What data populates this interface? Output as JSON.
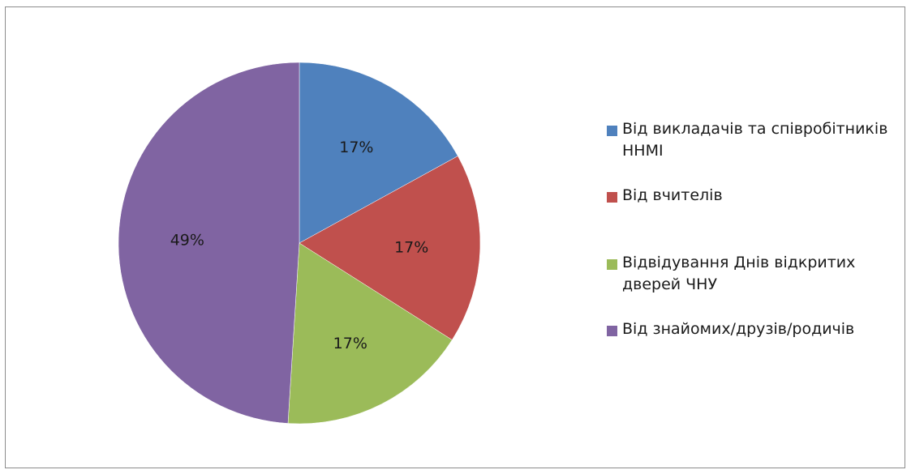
{
  "chart_data": {
    "type": "pie",
    "series": [
      {
        "name": "Від викладачів та співробітників ННМІ",
        "value": 17,
        "label": "17%",
        "color": "#4f81bd"
      },
      {
        "name": "Від вчителів",
        "value": 17,
        "label": "17%",
        "color": "#c0504d"
      },
      {
        "name": "Відвідування Днів відкритих дверей ЧНУ",
        "value": 17,
        "label": "17%",
        "color": "#9bbb59"
      },
      {
        "name": "Від знайомих/друзів/родичів",
        "value": 49,
        "label": "49%",
        "color": "#8064a2"
      }
    ],
    "legend_position": "right"
  }
}
